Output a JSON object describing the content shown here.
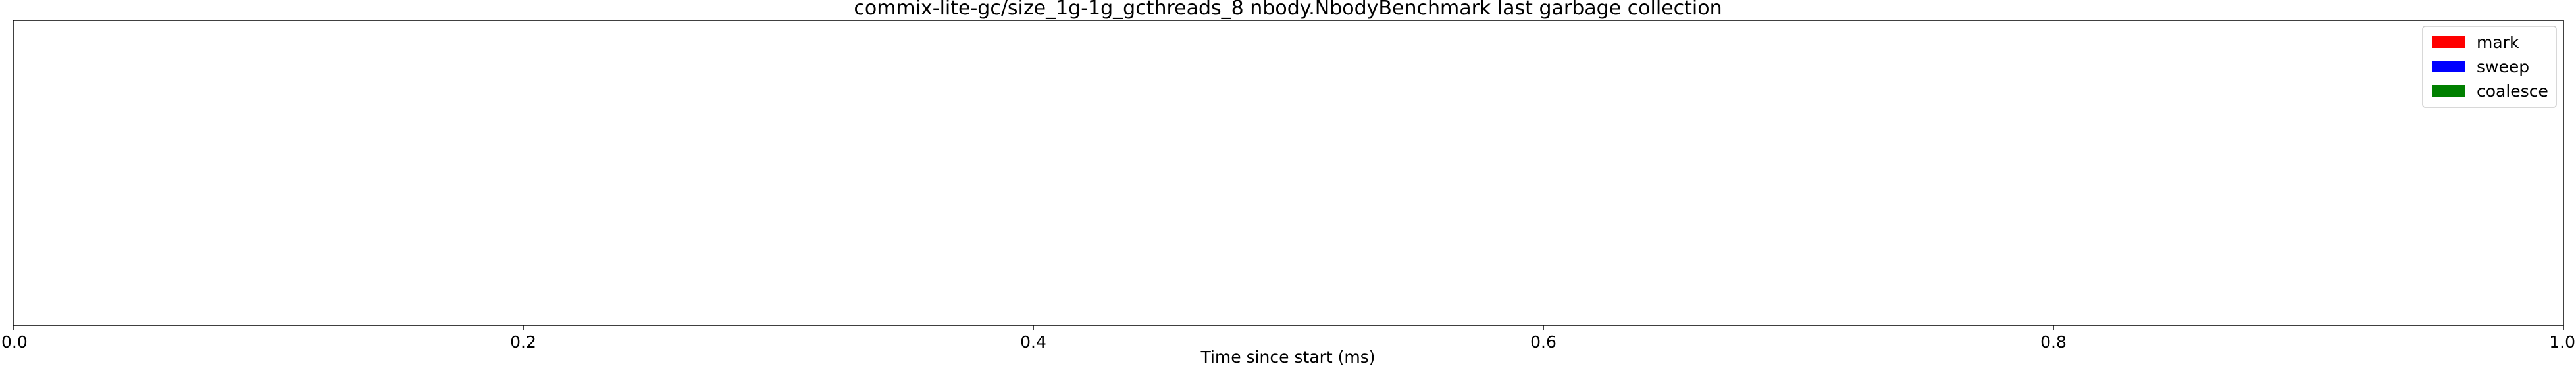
{
  "chart_data": {
    "type": "bar",
    "title": "commix-lite-gc/size_1g-1g_gcthreads_8 nbody.NbodyBenchmark last garbage collection",
    "xlabel": "Time since start (ms)",
    "ylabel": "",
    "xlim": [
      0.0,
      1.0
    ],
    "x_ticks": [
      "0.0",
      "0.2",
      "0.4",
      "0.6",
      "0.8",
      "1.0"
    ],
    "grid": false,
    "legend_position": "top-right",
    "series": [
      {
        "name": "mark",
        "color": "#ff0000",
        "values": []
      },
      {
        "name": "sweep",
        "color": "#0000ff",
        "values": []
      },
      {
        "name": "coalesce",
        "color": "#008000",
        "values": []
      }
    ]
  }
}
